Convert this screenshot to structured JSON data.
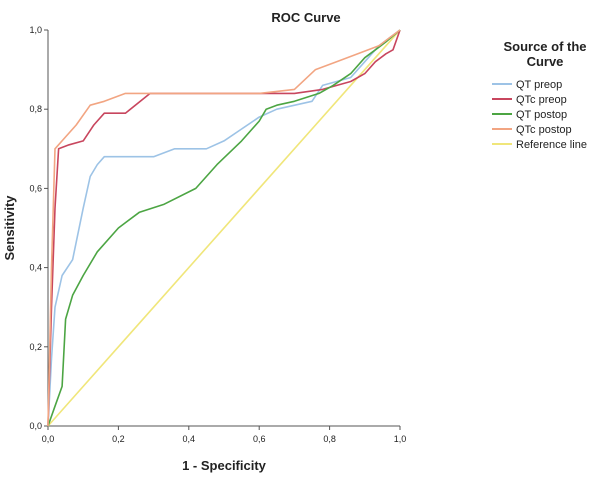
{
  "chart_data": {
    "type": "line",
    "title": "ROC Curve",
    "xlabel": "1 - Specificity",
    "ylabel": "Sensitivity",
    "xlim": [
      0,
      1
    ],
    "ylim": [
      0,
      1
    ],
    "xticks": [
      "0,0",
      "0,2",
      "0,4",
      "0,6",
      "0,8",
      "1,0"
    ],
    "yticks": [
      "0,0",
      "0,2",
      "0,4",
      "0,6",
      "0,8",
      "1,0"
    ],
    "grid": false,
    "legend": {
      "title_line1": "Source of the",
      "title_line2": "Curve",
      "placement": "right"
    },
    "series": [
      {
        "name": "QT preop",
        "color": "#9dc3e6",
        "x": [
          0,
          0.01,
          0.02,
          0.04,
          0.07,
          0.1,
          0.12,
          0.14,
          0.16,
          0.2,
          0.3,
          0.36,
          0.45,
          0.5,
          0.55,
          0.6,
          0.65,
          0.75,
          0.78,
          0.82,
          0.86,
          0.9,
          0.94,
          0.97,
          1
        ],
        "y": [
          0,
          0.17,
          0.3,
          0.38,
          0.42,
          0.55,
          0.63,
          0.66,
          0.68,
          0.68,
          0.68,
          0.7,
          0.7,
          0.72,
          0.75,
          0.78,
          0.8,
          0.82,
          0.86,
          0.87,
          0.88,
          0.92,
          0.96,
          0.98,
          1
        ]
      },
      {
        "name": "QTc preop",
        "color": "#c8465e",
        "x": [
          0,
          0.01,
          0.02,
          0.03,
          0.06,
          0.1,
          0.13,
          0.16,
          0.22,
          0.29,
          0.4,
          0.55,
          0.7,
          0.78,
          0.86,
          0.9,
          0.93,
          0.96,
          0.98,
          1
        ],
        "y": [
          0,
          0.3,
          0.55,
          0.7,
          0.71,
          0.72,
          0.76,
          0.79,
          0.79,
          0.84,
          0.84,
          0.84,
          0.84,
          0.85,
          0.87,
          0.89,
          0.92,
          0.94,
          0.95,
          1
        ]
      },
      {
        "name": "QT postop",
        "color": "#4ca543",
        "x": [
          0,
          0.02,
          0.04,
          0.05,
          0.07,
          0.1,
          0.14,
          0.2,
          0.26,
          0.33,
          0.42,
          0.48,
          0.55,
          0.6,
          0.62,
          0.65,
          0.7,
          0.77,
          0.81,
          0.86,
          0.9,
          0.93,
          0.96,
          1
        ],
        "y": [
          0,
          0.05,
          0.1,
          0.27,
          0.33,
          0.38,
          0.44,
          0.5,
          0.54,
          0.56,
          0.6,
          0.66,
          0.72,
          0.77,
          0.8,
          0.81,
          0.82,
          0.84,
          0.86,
          0.89,
          0.93,
          0.95,
          0.97,
          1
        ]
      },
      {
        "name": "QTc postop",
        "color": "#f2a582",
        "x": [
          0,
          0.01,
          0.02,
          0.05,
          0.08,
          0.12,
          0.16,
          0.22,
          0.4,
          0.6,
          0.7,
          0.76,
          0.82,
          0.88,
          0.94,
          0.97,
          1
        ],
        "y": [
          0,
          0.4,
          0.7,
          0.73,
          0.76,
          0.81,
          0.82,
          0.84,
          0.84,
          0.84,
          0.85,
          0.9,
          0.92,
          0.94,
          0.96,
          0.98,
          1
        ]
      },
      {
        "name": "Reference line",
        "color": "#f0e67a",
        "x": [
          0,
          1
        ],
        "y": [
          0,
          1
        ]
      }
    ]
  }
}
